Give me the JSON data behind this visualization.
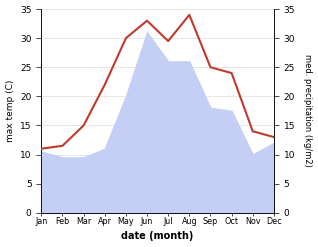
{
  "months": [
    "Jan",
    "Feb",
    "Mar",
    "Apr",
    "May",
    "Jun",
    "Jul",
    "Aug",
    "Sep",
    "Oct",
    "Nov",
    "Dec"
  ],
  "temperature": [
    10.5,
    9.5,
    9.5,
    11.0,
    20.0,
    31.0,
    26.0,
    26.0,
    18.0,
    17.5,
    10.0,
    12.0
  ],
  "precipitation": [
    11.0,
    11.5,
    15.0,
    22.0,
    30.0,
    33.0,
    29.5,
    34.0,
    25.0,
    24.0,
    14.0,
    13.0
  ],
  "fill_color": "#c5cef5",
  "line_color": "#c0392b",
  "ylabel_left": "max temp (C)",
  "ylabel_right": "med. precipitation (kg/m2)",
  "xlabel": "date (month)",
  "ylim": [
    0,
    35
  ],
  "background_color": "#ffffff",
  "grid_color": "#dddddd"
}
